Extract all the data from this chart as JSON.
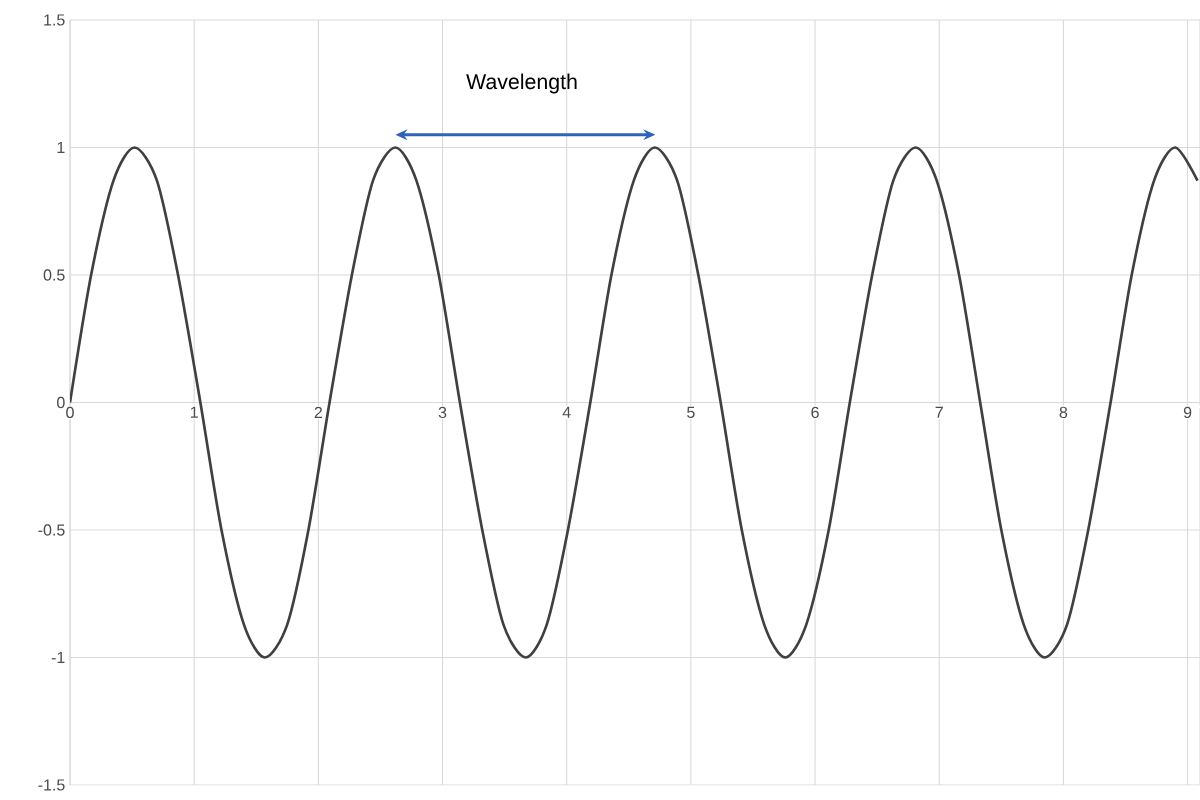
{
  "chart_data": {
    "type": "line",
    "x": [
      0,
      0.17,
      0.35,
      0.52,
      0.7,
      0.87,
      1.05,
      1.22,
      1.4,
      1.57,
      1.75,
      1.92,
      2.09,
      2.27,
      2.44,
      2.62,
      2.79,
      2.97,
      3.14,
      3.32,
      3.49,
      3.67,
      3.84,
      4.01,
      4.19,
      4.36,
      4.54,
      4.71,
      4.89,
      5.06,
      5.24,
      5.41,
      5.59,
      5.76,
      5.93,
      6.11,
      6.28,
      6.46,
      6.63,
      6.81,
      6.98,
      7.16,
      7.33,
      7.5,
      7.68,
      7.85,
      8.03,
      8.2,
      8.38,
      8.55,
      8.73,
      8.9,
      9.08
    ],
    "series": [
      {
        "color": "#404040",
        "values": [
          0,
          0.5,
          0.87,
          1,
          0.87,
          0.5,
          0,
          -0.5,
          -0.87,
          -1,
          -0.87,
          -0.5,
          0,
          0.5,
          0.87,
          1,
          0.87,
          0.5,
          0,
          -0.5,
          -0.87,
          -1,
          -0.87,
          -0.5,
          0,
          0.5,
          0.87,
          1,
          0.87,
          0.5,
          0,
          -0.5,
          -0.87,
          -1,
          -0.87,
          -0.5,
          0,
          0.5,
          0.87,
          1,
          0.87,
          0.5,
          0,
          -0.5,
          -0.87,
          -1,
          -0.87,
          -0.5,
          0,
          0.5,
          0.87,
          1,
          0.87
        ]
      }
    ],
    "annotations": [
      "Wavelength"
    ],
    "xlim": [
      0,
      9.1
    ],
    "ylim": [
      -1.5,
      1.5
    ],
    "xticks": [
      0,
      1,
      2,
      3,
      4,
      5,
      6,
      7,
      8,
      9,
      {
        "value": 9.1,
        "label": null
      }
    ],
    "yticks": [
      -1.5,
      -1,
      -0.5,
      0,
      0.5,
      1,
      1.5
    ],
    "grid": true,
    "marker": "none",
    "line_style": "solid"
  }
}
